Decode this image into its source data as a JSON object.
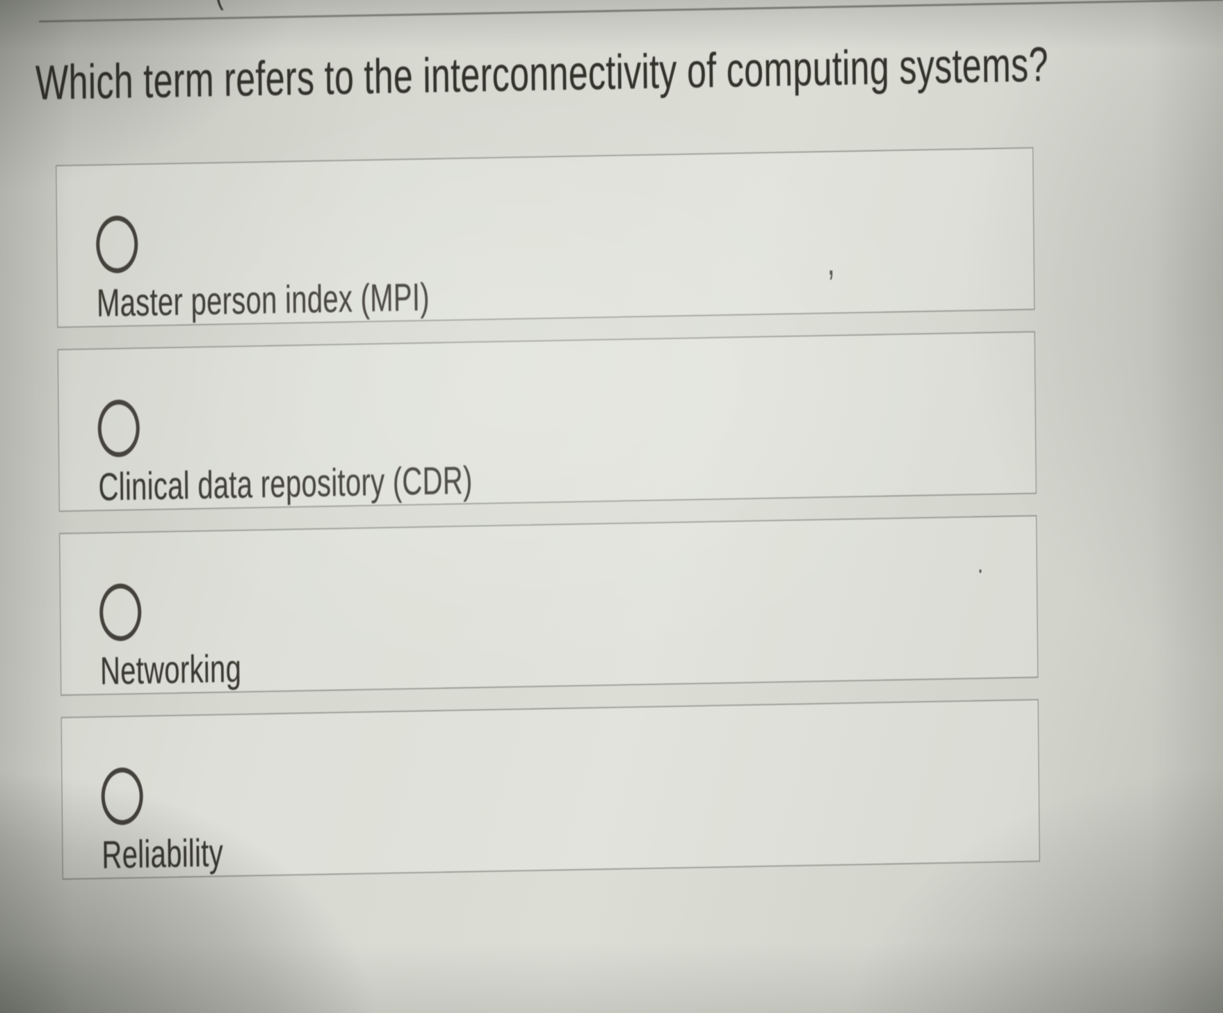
{
  "colors": {
    "page_background": "#d7d9d1",
    "question_text": "#33322b",
    "option_text": "#3b3a32",
    "option_border": "#686a61",
    "divider": "#83857c",
    "radio_stroke": "#44423a"
  },
  "header": {
    "clipped_text": "·········· ("
  },
  "question": {
    "text": "Which term refers to the interconnectivity of computing systems?"
  },
  "options": [
    {
      "label": "Master person index (MPI)",
      "selected": false
    },
    {
      "label": "Clinical data repository (CDR)",
      "selected": false
    },
    {
      "label": "Networking",
      "selected": false
    },
    {
      "label": "Reliability",
      "selected": false
    }
  ],
  "artifacts": {
    "speck_comma": ",",
    "speck_dot": "."
  }
}
